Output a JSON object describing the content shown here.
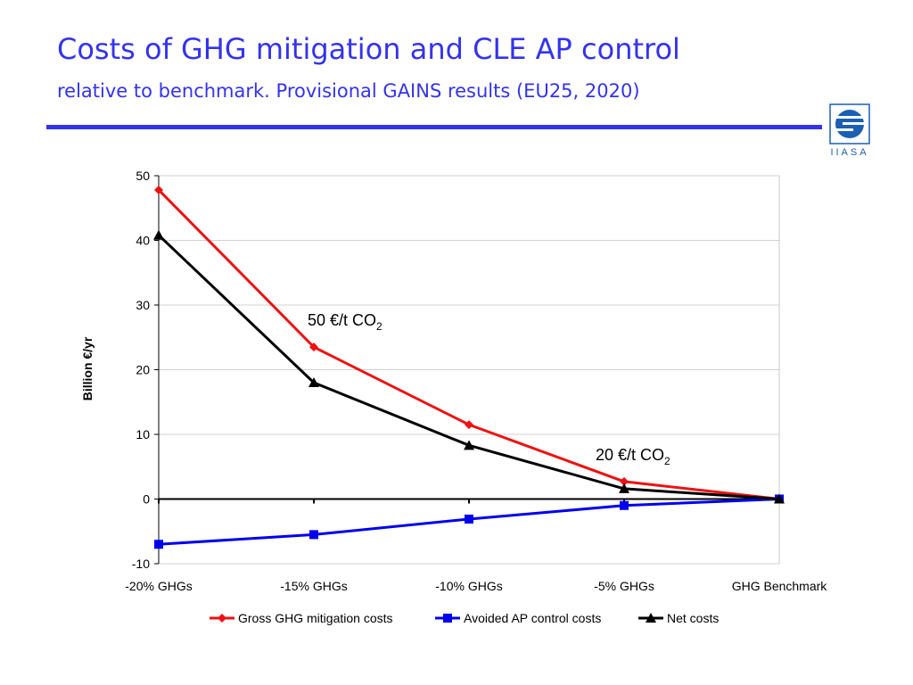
{
  "slide": {
    "title": "Costs of GHG mitigation and CLE AP control",
    "subtitle": "relative to benchmark. Provisional GAINS results (EU25, 2020)",
    "logo_text": "IIASA",
    "accent_color": "#3333ee"
  },
  "chart_data": {
    "type": "line",
    "categories": [
      "-20% GHGs",
      "-15% GHGs",
      "-10% GHGs",
      "-5% GHGs",
      "GHG Benchmark"
    ],
    "series": [
      {
        "name": "Gross GHG mitigation costs",
        "values": [
          47.8,
          23.5,
          11.5,
          2.7,
          0.0
        ],
        "color": "#ee1111",
        "marker": "diamond"
      },
      {
        "name": "Avoided AP control costs",
        "values": [
          -7.0,
          -5.5,
          -3.1,
          -1.0,
          0.0
        ],
        "color": "#0000ee",
        "marker": "square"
      },
      {
        "name": "Net costs",
        "values": [
          40.8,
          18.0,
          8.3,
          1.6,
          0.0
        ],
        "color": "#000000",
        "marker": "triangle"
      }
    ],
    "xlabel": "",
    "ylabel": "Billion €/yr",
    "ylim": [
      -10,
      50
    ],
    "yticks": [
      50,
      40,
      30,
      20,
      10,
      0,
      -10
    ],
    "grid": true,
    "legend_position": "bottom",
    "annotations": [
      {
        "text": "50 €/t CO",
        "sub": "2",
        "anchor_category": "-15% GHGs"
      },
      {
        "text": "20 €/t CO",
        "sub": "2",
        "anchor_category": "-5% GHGs"
      }
    ]
  }
}
